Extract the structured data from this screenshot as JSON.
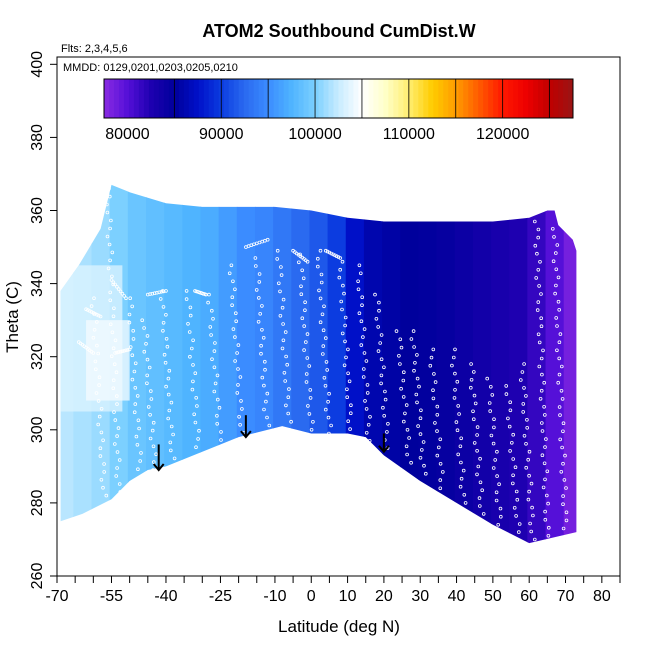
{
  "chart_data": {
    "type": "heatmap",
    "title": "ATOM2 Southbound CumDist.W",
    "annotations": {
      "flights": "Flts: 2,3,4,5,6",
      "dates": "MMDD: 0129,0201,0203,0205,0210"
    },
    "xlabel": "Latitude (deg N)",
    "ylabel": "Theta (C)",
    "xlim": [
      -70,
      85
    ],
    "ylim": [
      260,
      402
    ],
    "x_ticks_major": [
      -70,
      -55,
      -40,
      -25,
      -10,
      0,
      10,
      20,
      30,
      40,
      50,
      60,
      70,
      80
    ],
    "x_ticks_minor_step": 5,
    "y_ticks": [
      260,
      280,
      300,
      320,
      340,
      360,
      380,
      400
    ],
    "grid": false,
    "colorbar": {
      "position": "top",
      "range": [
        77500,
        127500
      ],
      "ticks": [
        80000,
        90000,
        100000,
        110000,
        120000
      ],
      "dividers": [
        85000,
        90000,
        95000,
        100000,
        105000,
        110000,
        115000,
        120000,
        125000
      ],
      "colors": [
        {
          "v": 77500,
          "c": "#8a2be2"
        },
        {
          "v": 80000,
          "c": "#5510d8"
        },
        {
          "v": 82500,
          "c": "#1e00b0"
        },
        {
          "v": 85000,
          "c": "#00009c"
        },
        {
          "v": 87500,
          "c": "#0010c8"
        },
        {
          "v": 90000,
          "c": "#0c3ce0"
        },
        {
          "v": 92500,
          "c": "#2a6af0"
        },
        {
          "v": 95000,
          "c": "#3b8cff"
        },
        {
          "v": 97500,
          "c": "#4fb4ff"
        },
        {
          "v": 100000,
          "c": "#7cd0ff"
        },
        {
          "v": 102500,
          "c": "#c8ecff"
        },
        {
          "v": 105000,
          "c": "#ffffff"
        },
        {
          "v": 107500,
          "c": "#ffffc8"
        },
        {
          "v": 110000,
          "c": "#ffee70"
        },
        {
          "v": 112500,
          "c": "#ffcc00"
        },
        {
          "v": 115000,
          "c": "#ff9c00"
        },
        {
          "v": 117500,
          "c": "#ff5a00"
        },
        {
          "v": 120000,
          "c": "#ff1800"
        },
        {
          "v": 122500,
          "c": "#ee0000"
        },
        {
          "v": 125000,
          "c": "#c00000"
        },
        {
          "v": 127500,
          "c": "#9a1414"
        }
      ]
    },
    "field_boundary": {
      "top": [
        [
          -69,
          338
        ],
        [
          -64,
          345
        ],
        [
          -58,
          355
        ],
        [
          -55,
          367
        ],
        [
          -50,
          365
        ],
        [
          -40,
          362
        ],
        [
          -30,
          361
        ],
        [
          -20,
          361
        ],
        [
          -10,
          361
        ],
        [
          0,
          360
        ],
        [
          10,
          358
        ],
        [
          20,
          357
        ],
        [
          30,
          357
        ],
        [
          40,
          357
        ],
        [
          50,
          357
        ],
        [
          60,
          358
        ],
        [
          65,
          360
        ],
        [
          67,
          360
        ],
        [
          68,
          356
        ],
        [
          72,
          352
        ],
        [
          73,
          349
        ]
      ],
      "bottom": [
        [
          73,
          272
        ],
        [
          60,
          269
        ],
        [
          50,
          274
        ],
        [
          40,
          280
        ],
        [
          30,
          286
        ],
        [
          20,
          293
        ],
        [
          15,
          298
        ],
        [
          10,
          299
        ],
        [
          0,
          299
        ],
        [
          -8,
          301
        ],
        [
          -20,
          298
        ],
        [
          -30,
          294
        ],
        [
          -40,
          290
        ],
        [
          -45,
          289
        ],
        [
          -50,
          286
        ],
        [
          -55,
          281
        ],
        [
          -63,
          277
        ],
        [
          -69,
          275
        ]
      ]
    },
    "field_columns": [
      {
        "lat": -68,
        "v": 102000
      },
      {
        "lat": -63,
        "v": 101500
      },
      {
        "lat": -58,
        "v": 101000
      },
      {
        "lat": -53,
        "v": 100000
      },
      {
        "lat": -48,
        "v": 99000
      },
      {
        "lat": -43,
        "v": 98500
      },
      {
        "lat": -38,
        "v": 98000
      },
      {
        "lat": -33,
        "v": 97500
      },
      {
        "lat": -28,
        "v": 97000
      },
      {
        "lat": -23,
        "v": 96000
      },
      {
        "lat": -18,
        "v": 95000
      },
      {
        "lat": -13,
        "v": 94500
      },
      {
        "lat": -8,
        "v": 93500
      },
      {
        "lat": -3,
        "v": 92500
      },
      {
        "lat": 2,
        "v": 91500
      },
      {
        "lat": 7,
        "v": 90000
      },
      {
        "lat": 12,
        "v": 87500
      },
      {
        "lat": 17,
        "v": 86000
      },
      {
        "lat": 22,
        "v": 85500
      },
      {
        "lat": 27,
        "v": 85000
      },
      {
        "lat": 32,
        "v": 84800
      },
      {
        "lat": 37,
        "v": 84500
      },
      {
        "lat": 42,
        "v": 84000
      },
      {
        "lat": 47,
        "v": 83500
      },
      {
        "lat": 52,
        "v": 83000
      },
      {
        "lat": 57,
        "v": 82500
      },
      {
        "lat": 62,
        "v": 81500
      },
      {
        "lat": 67,
        "v": 80000
      },
      {
        "lat": 72,
        "v": 78500
      }
    ],
    "field_patches": [
      {
        "lat_range": [
          -69,
          -52
        ],
        "theta_range": [
          305,
          345
        ],
        "v": 103500
      },
      {
        "lat_range": [
          -62,
          -50
        ],
        "theta_range": [
          308,
          330
        ],
        "v": 104500
      }
    ],
    "profiles": [
      {
        "lat_start": -60,
        "lat_end": -57,
        "theta_top": 336,
        "theta_bottom": 282
      },
      {
        "lat_start": -56,
        "lat_end": -53,
        "theta_top": 366,
        "theta_bottom": 283
      },
      {
        "lat_start": -50,
        "lat_end": -47,
        "theta_top": 336,
        "theta_bottom": 287
      },
      {
        "lat_start": -46,
        "lat_end": -43,
        "theta_top": 330,
        "theta_bottom": 289
      },
      {
        "lat_start": -41,
        "lat_end": -38,
        "theta_top": 338,
        "theta_bottom": 290
      },
      {
        "lat_start": -34,
        "lat_end": -31,
        "theta_top": 338,
        "theta_bottom": 293
      },
      {
        "lat_start": -28,
        "lat_end": -25,
        "theta_top": 337,
        "theta_bottom": 295
      },
      {
        "lat_start": -22,
        "lat_end": -19,
        "theta_top": 345,
        "theta_bottom": 297
      },
      {
        "lat_start": -15,
        "lat_end": -12,
        "theta_top": 347,
        "theta_bottom": 299
      },
      {
        "lat_start": -9,
        "lat_end": -6,
        "theta_top": 349,
        "theta_bottom": 300
      },
      {
        "lat_start": -3,
        "lat_end": 0,
        "theta_top": 348,
        "theta_bottom": 300
      },
      {
        "lat_start": 2,
        "lat_end": 5,
        "theta_top": 349,
        "theta_bottom": 299
      },
      {
        "lat_start": 8,
        "lat_end": 11,
        "theta_top": 346,
        "theta_bottom": 298
      },
      {
        "lat_start": 13,
        "lat_end": 16,
        "theta_top": 345,
        "theta_bottom": 297
      },
      {
        "lat_start": 18,
        "lat_end": 21,
        "theta_top": 337,
        "theta_bottom": 295
      },
      {
        "lat_start": 24,
        "lat_end": 27,
        "theta_top": 327,
        "theta_bottom": 291
      },
      {
        "lat_start": 28,
        "lat_end": 31,
        "theta_top": 327,
        "theta_bottom": 288
      },
      {
        "lat_start": 33,
        "lat_end": 36,
        "theta_top": 322,
        "theta_bottom": 284
      },
      {
        "lat_start": 39,
        "lat_end": 42,
        "theta_top": 322,
        "theta_bottom": 280
      },
      {
        "lat_start": 44,
        "lat_end": 47,
        "theta_top": 318,
        "theta_bottom": 277
      },
      {
        "lat_start": 49,
        "lat_end": 52,
        "theta_top": 314,
        "theta_bottom": 274
      },
      {
        "lat_start": 54,
        "lat_end": 57,
        "theta_top": 312,
        "theta_bottom": 272
      },
      {
        "lat_start": 58,
        "lat_end": 61,
        "theta_top": 318,
        "theta_bottom": 270
      },
      {
        "lat_start": 62,
        "lat_end": 65,
        "theta_top": 357,
        "theta_bottom": 271
      },
      {
        "lat_start": 67,
        "lat_end": 70,
        "theta_top": 355,
        "theta_bottom": 273
      }
    ],
    "profile_tops": [
      {
        "lat": [
          -62,
          -58
        ],
        "theta": [
          333,
          331
        ]
      },
      {
        "lat": [
          -55,
          -51
        ],
        "theta": [
          341,
          336
        ]
      },
      {
        "lat": [
          -45,
          -40
        ],
        "theta": [
          337,
          338
        ]
      },
      {
        "lat": [
          -32,
          -29
        ],
        "theta": [
          338,
          337
        ]
      },
      {
        "lat": [
          -18,
          -12
        ],
        "theta": [
          350,
          352
        ]
      },
      {
        "lat": [
          -5,
          -1
        ],
        "theta": [
          349,
          346
        ]
      },
      {
        "lat": [
          4,
          8
        ],
        "theta": [
          349,
          347
        ]
      },
      {
        "lat": [
          -64,
          -60
        ],
        "theta": [
          324,
          321
        ]
      },
      {
        "lat": [
          -54,
          -50
        ],
        "theta": [
          321,
          322
        ]
      }
    ],
    "arrows": [
      {
        "lat": -42,
        "theta_from": 296,
        "theta_to": 289
      },
      {
        "lat": -18,
        "theta_from": 304,
        "theta_to": 298
      },
      {
        "lat": 20,
        "theta_from": 299,
        "theta_to": 294
      }
    ]
  }
}
